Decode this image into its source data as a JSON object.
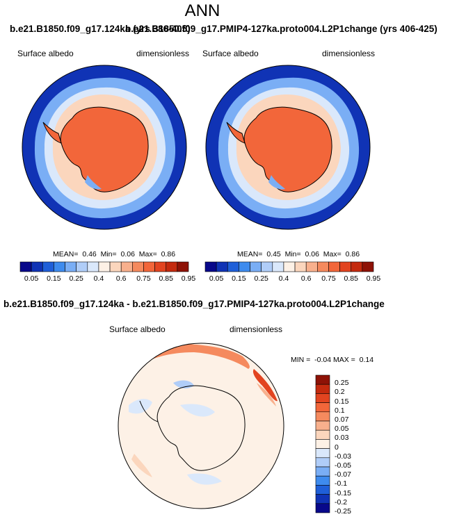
{
  "header": {
    "title": "ANN"
  },
  "cases": {
    "left": "b.e21.B1850.f09_g17.124ka (yrs 386-405)",
    "right": "b.e21.B1850.f09_g17.PMIP4-127ka.proto004.L2P1change (yrs 406-425)",
    "diff": "b.e21.B1850.f09_g17.124ka - b.e21.B1850.f09_g17.PMIP4-127ka.proto004.L2P1change"
  },
  "panels": {
    "left": {
      "variable": "Surface albedo",
      "units": "dimensionless",
      "mean_label": "MEAN=",
      "mean": "0.46",
      "min_label": "Min=",
      "min": "0.06",
      "max_label": "Max=",
      "max": "0.86"
    },
    "right": {
      "variable": "Surface albedo",
      "units": "dimensionless",
      "mean_label": "MEAN=",
      "mean": "0.45",
      "min_label": "Min=",
      "min": "0.06",
      "max_label": "Max=",
      "max": "0.86"
    },
    "diff": {
      "variable": "Surface albedo",
      "units": "dimensionless",
      "min_label": "MIN =",
      "min": "-0.04",
      "max_label": "MAX =",
      "max": "0.14"
    }
  },
  "colorbars": {
    "abs": {
      "labels": [
        "0.05",
        "0.15",
        "0.25",
        "0.4",
        "0.6",
        "0.75",
        "0.85",
        "0.95"
      ],
      "colors": [
        "#08088a",
        "#1033b5",
        "#1f5fd8",
        "#3e8bee",
        "#7aaef5",
        "#b0cdf8",
        "#dae8fb",
        "#fdf1e6",
        "#fbd6bd",
        "#f8b08d",
        "#f58a5e",
        "#f2663a",
        "#e24420",
        "#c42a0e",
        "#8e1206"
      ]
    },
    "diff": {
      "labels": [
        "0.25",
        "0.2",
        "0.15",
        "0.1",
        "0.07",
        "0.05",
        "0.03",
        "0",
        "-0.03",
        "-0.05",
        "-0.07",
        "-0.1",
        "-0.15",
        "-0.2",
        "-0.25"
      ],
      "colors": [
        "#8e1206",
        "#c42a0e",
        "#e24420",
        "#f2663a",
        "#f58a5e",
        "#f8b08d",
        "#fbd6bd",
        "#fdf1e6",
        "#dae8fb",
        "#b0cdf8",
        "#7aaef5",
        "#3e8bee",
        "#1f5fd8",
        "#1033b5",
        "#08088a"
      ]
    }
  }
}
